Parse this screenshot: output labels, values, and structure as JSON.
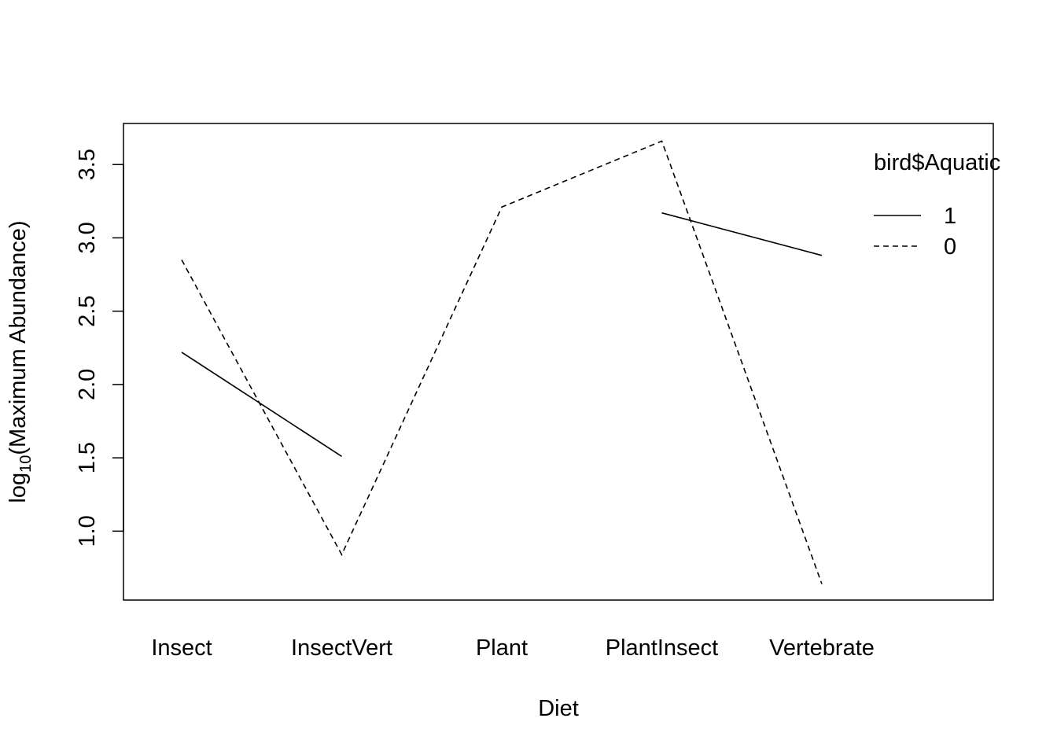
{
  "chart_data": {
    "type": "line",
    "title": "",
    "xlabel": "Diet",
    "ylabel": {
      "prefix": "log",
      "subscript": "10",
      "suffix": "(Maximum Abundance)"
    },
    "categories": [
      "Insect",
      "InsectVert",
      "Plant",
      "PlantInsect",
      "Vertebrate"
    ],
    "ylim": [
      0.53,
      3.78
    ],
    "yticks": [
      1.0,
      1.5,
      2.0,
      2.5,
      3.0,
      3.5
    ],
    "ytick_labels": [
      "1.0",
      "1.5",
      "2.0",
      "2.5",
      "3.0",
      "3.5"
    ],
    "grid": false,
    "legend": {
      "title": "bird$Aquatic",
      "placement": "top-right",
      "entries": [
        {
          "label": "1",
          "line_style": "solid"
        },
        {
          "label": "0",
          "line_style": "dashed"
        }
      ]
    },
    "series": [
      {
        "name": "1",
        "line_style": "solid",
        "color": "#000000",
        "values": [
          2.22,
          1.51,
          null,
          3.17,
          2.88
        ]
      },
      {
        "name": "0",
        "line_style": "dashed",
        "color": "#000000",
        "values": [
          2.85,
          0.84,
          3.21,
          3.66,
          0.64
        ]
      }
    ]
  }
}
